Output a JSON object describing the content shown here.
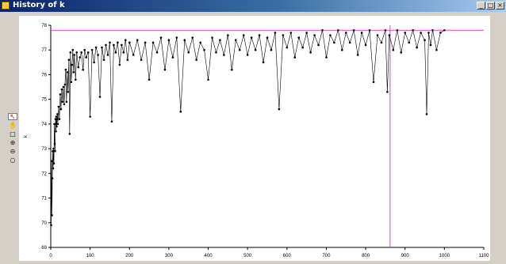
{
  "window": {
    "title": "History of k",
    "controls": {
      "minimize": "_",
      "restore": "□",
      "close": "×"
    }
  },
  "toolbar": {
    "tools": [
      {
        "name": "pointer-tool-icon",
        "glyph": "↖",
        "active": true
      },
      {
        "name": "pan-hand-icon",
        "glyph": "✋",
        "active": false
      },
      {
        "name": "select-box-icon",
        "glyph": "□",
        "active": false
      },
      {
        "name": "zoom-in-icon",
        "glyph": "⊕",
        "active": false
      },
      {
        "name": "zoom-out-icon",
        "glyph": "⊖",
        "active": false
      },
      {
        "name": "reset-view-icon",
        "glyph": "○",
        "active": false
      }
    ]
  },
  "chart_data": {
    "type": "line",
    "title": "",
    "xlabel": "",
    "ylabel": "k",
    "xlim": [
      0,
      1100
    ],
    "ylim": [
      69,
      78
    ],
    "x_ticks": [
      0,
      100,
      200,
      300,
      400,
      500,
      600,
      700,
      800,
      900,
      1000,
      1100
    ],
    "y_ticks": [
      69,
      70,
      71,
      72,
      73,
      74,
      75,
      76,
      77,
      78
    ],
    "grid": false,
    "series_color": "#000000",
    "marker": "filled-circle",
    "reference_lines": [
      {
        "orientation": "horizontal",
        "value": 77.8,
        "color": "#e040c0"
      },
      {
        "orientation": "vertical",
        "value": 862,
        "color": "#e040c0"
      }
    ],
    "series": [
      {
        "x": [
          1,
          2,
          3,
          4,
          5,
          6,
          7,
          8,
          9,
          10,
          11,
          12,
          13,
          14,
          15,
          16,
          17,
          18,
          20,
          22,
          24,
          26,
          28,
          30,
          32,
          34,
          36,
          38,
          40,
          42,
          44,
          46,
          48,
          50,
          52,
          54,
          56,
          58,
          60,
          63,
          66,
          70,
          74,
          78,
          82,
          86,
          90,
          95,
          100,
          105,
          110,
          115,
          120,
          125,
          130,
          135,
          140,
          145,
          150,
          155,
          160,
          165,
          170,
          175,
          180,
          185,
          190,
          195,
          200,
          210,
          220,
          230,
          240,
          250,
          260,
          270,
          280,
          290,
          300,
          310,
          320,
          330,
          340,
          350,
          360,
          370,
          380,
          390,
          400,
          410,
          420,
          430,
          440,
          450,
          460,
          470,
          480,
          490,
          500,
          510,
          520,
          530,
          540,
          550,
          560,
          570,
          580,
          590,
          600,
          610,
          620,
          630,
          640,
          650,
          660,
          670,
          680,
          690,
          700,
          710,
          720,
          730,
          740,
          750,
          760,
          770,
          780,
          790,
          800,
          810,
          820,
          830,
          840,
          850,
          855,
          860,
          870,
          880,
          890,
          900,
          910,
          920,
          930,
          940,
          950,
          955,
          960,
          965,
          970,
          980,
          990,
          1000
        ],
        "y": [
          69.9,
          72.5,
          70.3,
          71.8,
          72.9,
          72.2,
          73.0,
          72.4,
          74.0,
          73.2,
          72.9,
          74.2,
          73.7,
          74.3,
          73.9,
          74.2,
          74.4,
          74.0,
          74.7,
          74.2,
          75.2,
          74.6,
          75.4,
          74.9,
          75.5,
          74.8,
          75.6,
          76.2,
          74.9,
          76.1,
          75.3,
          76.6,
          73.6,
          76.9,
          75.7,
          76.4,
          77.0,
          76.1,
          76.8,
          75.8,
          76.9,
          76.3,
          76.7,
          76.9,
          76.2,
          77.0,
          76.7,
          76.9,
          74.3,
          77.0,
          76.5,
          77.1,
          76.8,
          75.1,
          77.1,
          76.6,
          77.2,
          76.8,
          77.3,
          74.1,
          77.2,
          76.9,
          77.3,
          76.4,
          77.2,
          76.9,
          77.4,
          76.6,
          77.3,
          76.8,
          77.4,
          76.6,
          77.3,
          75.8,
          77.3,
          76.9,
          77.5,
          76.2,
          77.4,
          76.7,
          77.5,
          74.5,
          77.4,
          76.9,
          77.5,
          76.6,
          77.3,
          77.0,
          75.8,
          77.5,
          76.9,
          77.4,
          76.8,
          77.6,
          76.2,
          77.4,
          77.0,
          77.6,
          76.8,
          77.5,
          77.0,
          77.6,
          76.5,
          77.5,
          77.0,
          77.7,
          74.6,
          77.6,
          77.1,
          77.7,
          76.7,
          77.5,
          77.1,
          77.7,
          76.9,
          77.6,
          77.2,
          77.8,
          76.7,
          77.6,
          77.3,
          77.8,
          77.0,
          77.7,
          77.3,
          77.8,
          76.8,
          77.7,
          77.2,
          77.8,
          75.7,
          77.6,
          77.3,
          77.8,
          75.3,
          77.6,
          77.0,
          77.8,
          76.9,
          77.7,
          77.3,
          77.8,
          77.1,
          77.7,
          77.4,
          74.4,
          77.7,
          77.2,
          77.8,
          77.0,
          77.7,
          77.8
        ]
      }
    ]
  }
}
